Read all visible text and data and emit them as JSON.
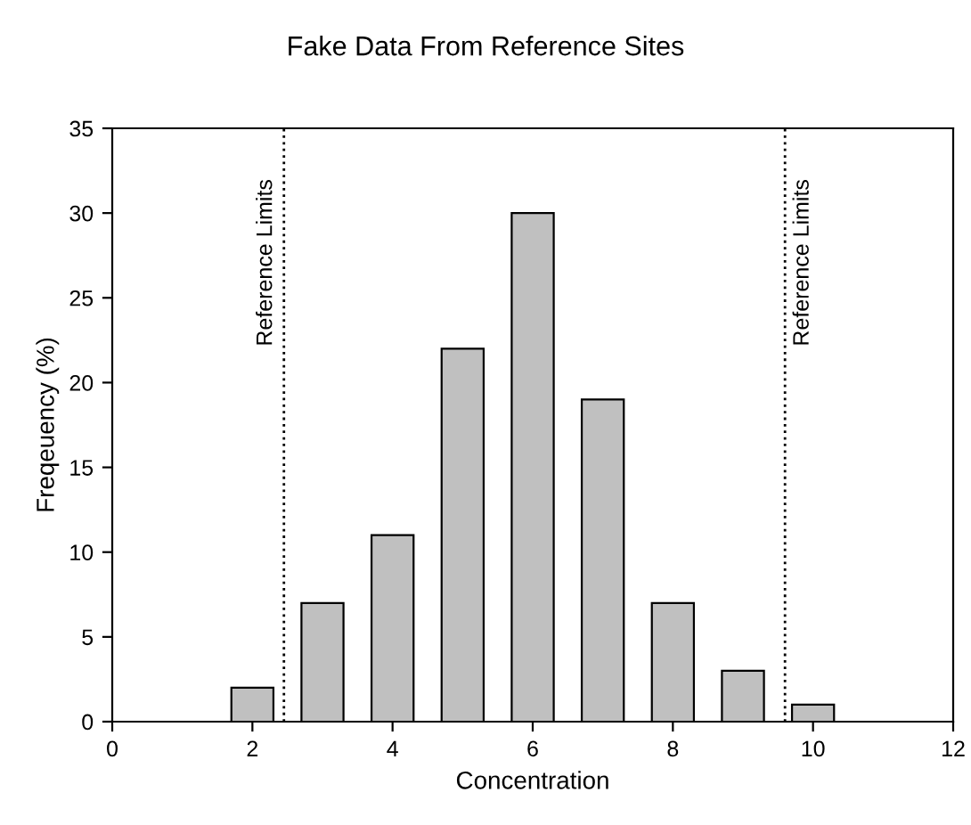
{
  "chart_data": {
    "type": "bar",
    "title": "Fake Data From Reference Sites",
    "xlabel": "Concentration",
    "ylabel": "Freqeuency (%)",
    "x": [
      2,
      3,
      4,
      5,
      6,
      7,
      8,
      9,
      10
    ],
    "series": [
      {
        "color": "#c0c0c0",
        "values": [
          2,
          7,
          11,
          22,
          30,
          19,
          7,
          3,
          1
        ]
      }
    ],
    "xlim": [
      0,
      12
    ],
    "xticks": [
      0,
      2,
      4,
      6,
      8,
      10,
      12
    ],
    "ylim": [
      0,
      35
    ],
    "yticks": [
      0,
      5,
      10,
      15,
      20,
      25,
      30,
      35
    ],
    "ref_lines": [
      {
        "axis": "x",
        "value": 2.45,
        "label": "Reference Limits",
        "color": "#000000",
        "line_style": "dotted"
      },
      {
        "axis": "x",
        "value": 9.6,
        "label": "Reference Limits",
        "color": "#000000",
        "line_style": "dotted"
      }
    ],
    "grid": false,
    "legend": false
  }
}
